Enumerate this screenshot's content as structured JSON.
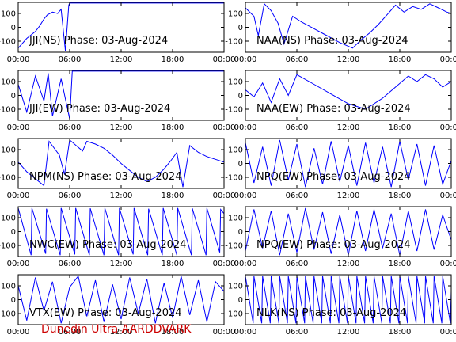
{
  "footer": {
    "text": "Dunedin Ultra AARDDVARK",
    "color": "#cc0000"
  },
  "colors": {
    "trace": "#0000ff",
    "axis": "#000000",
    "background": "#ffffff"
  },
  "chart_data": [
    {
      "type": "line",
      "title": "JJI(NS) Phase: 03-Aug-2024",
      "xlabel": "",
      "ylabel": "",
      "xticks": [
        "00:00",
        "06:00",
        "12:00",
        "18:00",
        "00:00"
      ],
      "yticks": [
        "100",
        "0",
        "-100"
      ],
      "xlim": [
        0,
        24
      ],
      "ylim": [
        -180,
        180
      ],
      "series": [
        {
          "x": [
            0,
            1,
            2,
            2.5,
            3,
            3.4,
            4,
            4.6,
            5,
            5.5,
            5.9,
            6,
            7,
            9,
            12,
            15,
            18,
            21,
            24
          ],
          "y": [
            -150,
            -80,
            -30,
            10,
            60,
            90,
            110,
            100,
            130,
            -170,
            160,
            175,
            175,
            175,
            175,
            175,
            175,
            175,
            175
          ]
        }
      ]
    },
    {
      "type": "line",
      "title": "NAA(NS) Phase: 03-Aug-2024",
      "xlabel": "",
      "ylabel": "",
      "xticks": [
        "00:00",
        "06:00",
        "12:00",
        "18:00",
        "00:00"
      ],
      "yticks": [
        "100",
        "0",
        "-100"
      ],
      "xlim": [
        0,
        24
      ],
      "ylim": [
        -180,
        180
      ],
      "series": [
        {
          "x": [
            0,
            1,
            1.5,
            2.2,
            3,
            3.8,
            4.5,
            5.5,
            6.5,
            8,
            9.5,
            11,
            12.5,
            13.5,
            14.5,
            15.5,
            16.5,
            17.5,
            18.5,
            19.5,
            20.5,
            21.5,
            22.5,
            23.5,
            24
          ],
          "y": [
            140,
            80,
            -60,
            170,
            120,
            30,
            -120,
            80,
            40,
            -10,
            -60,
            -110,
            -150,
            -90,
            -40,
            20,
            90,
            160,
            110,
            150,
            130,
            170,
            140,
            110,
            100
          ]
        }
      ]
    },
    {
      "type": "line",
      "title": "JJI(EW) Phase: 03-Aug-2024",
      "xlabel": "",
      "ylabel": "",
      "xticks": [
        "00:00",
        "06:00",
        "12:00",
        "18:00",
        "00:00"
      ],
      "yticks": [
        "100",
        "0",
        "-100"
      ],
      "xlim": [
        0,
        24
      ],
      "ylim": [
        -180,
        180
      ],
      "series": [
        {
          "x": [
            0,
            1,
            2,
            3,
            3.5,
            4,
            5,
            6,
            6.3,
            7,
            9,
            12,
            15,
            18,
            21,
            24
          ],
          "y": [
            80,
            -120,
            140,
            -40,
            160,
            -150,
            120,
            -170,
            175,
            175,
            175,
            175,
            175,
            175,
            175,
            175
          ]
        }
      ]
    },
    {
      "type": "line",
      "title": "NAA(EW) Phase: 03-Aug-2024",
      "xlabel": "",
      "ylabel": "",
      "xticks": [
        "00:00",
        "06:00",
        "12:00",
        "18:00",
        "00:00"
      ],
      "yticks": [
        "100",
        "0",
        "-100"
      ],
      "xlim": [
        0,
        24
      ],
      "ylim": [
        -180,
        180
      ],
      "series": [
        {
          "x": [
            0,
            1,
            2,
            3,
            4,
            5,
            6,
            8,
            10,
            12,
            14,
            16,
            17.5,
            19,
            20,
            21,
            22,
            23,
            24
          ],
          "y": [
            40,
            -10,
            90,
            -50,
            120,
            0,
            150,
            80,
            10,
            -60,
            -100,
            -20,
            60,
            140,
            100,
            150,
            120,
            60,
            100
          ]
        }
      ]
    },
    {
      "type": "line",
      "title": "NPM(NS) Phase: 03-Aug-2024",
      "xlabel": "",
      "ylabel": "",
      "xticks": [
        "00:00",
        "06:00",
        "12:00",
        "18:00",
        "00:00"
      ],
      "yticks": [
        "100",
        "0",
        "-100"
      ],
      "xlim": [
        0,
        24
      ],
      "ylim": [
        -180,
        180
      ],
      "series": [
        {
          "x": [
            0,
            1,
            2,
            3,
            3.6,
            4.8,
            5.4,
            6,
            7.5,
            8,
            9,
            10,
            11,
            12,
            13,
            14,
            15,
            16,
            17,
            17.8,
            18.5,
            19.2,
            20,
            21,
            22,
            23,
            24
          ],
          "y": [
            10,
            -60,
            -110,
            -160,
            160,
            60,
            -80,
            170,
            90,
            160,
            140,
            110,
            60,
            0,
            -50,
            -100,
            -130,
            -100,
            -40,
            20,
            80,
            -170,
            130,
            80,
            50,
            30,
            10
          ]
        }
      ]
    },
    {
      "type": "line",
      "title": "NPQ(EW) Phase: 03-Aug-2024",
      "xlabel": "",
      "ylabel": "",
      "xticks": [
        "00:00",
        "06:00",
        "12:00",
        "18:00",
        "00:00"
      ],
      "yticks": [
        "100",
        "0",
        "-100"
      ],
      "xlim": [
        0,
        24
      ],
      "ylim": [
        -180,
        180
      ],
      "series": [
        {
          "x": [
            0,
            1,
            2,
            3,
            4,
            5,
            6,
            7,
            8,
            9,
            10,
            11,
            12,
            13,
            14,
            15,
            16,
            17,
            18,
            19,
            20,
            21,
            22,
            23,
            24
          ],
          "y": [
            150,
            -140,
            120,
            -160,
            170,
            -120,
            140,
            -170,
            110,
            -150,
            160,
            -130,
            130,
            -160,
            150,
            -140,
            120,
            -170,
            160,
            -120,
            140,
            -160,
            130,
            -150,
            20
          ]
        }
      ]
    },
    {
      "type": "line",
      "title": "NWC(EW) Phase: 03-Aug-2024",
      "xlabel": "",
      "ylabel": "",
      "xticks": [
        "00:00",
        "06:00",
        "12:00",
        "18:00",
        "00:00"
      ],
      "yticks": [
        "100",
        "0",
        "-100"
      ],
      "xlim": [
        0,
        24
      ],
      "ylim": [
        -180,
        180
      ],
      "series": [
        {
          "x": [
            0,
            1.5,
            1.6,
            3.2,
            3.3,
            4.9,
            5,
            6.6,
            6.7,
            8.3,
            8.4,
            10,
            10.1,
            11.7,
            11.8,
            13.4,
            13.5,
            15.1,
            15.2,
            16.8,
            16.9,
            18.5,
            18.6,
            20.2,
            20.3,
            21.9,
            22,
            23.5,
            23.6,
            24
          ],
          "y": [
            170,
            -170,
            170,
            -160,
            165,
            -170,
            170,
            -165,
            170,
            -170,
            168,
            -170,
            170,
            -170,
            170,
            -165,
            170,
            -170,
            165,
            -170,
            170,
            -170,
            170,
            -170,
            168,
            -170,
            170,
            -150,
            160,
            130
          ]
        }
      ]
    },
    {
      "type": "line",
      "title": "NPQ(EW) Phase: 03-Aug-2024",
      "xlabel": "",
      "ylabel": "",
      "xticks": [
        "00:00",
        "06:00",
        "12:00",
        "18:00",
        "00:00"
      ],
      "yticks": [
        "100",
        "0",
        "-100"
      ],
      "xlim": [
        0,
        24
      ],
      "ylim": [
        -180,
        180
      ],
      "series": [
        {
          "x": [
            0,
            1,
            2,
            3,
            4,
            5,
            6,
            7,
            8,
            9,
            10,
            11,
            12,
            13,
            14,
            15,
            16,
            17,
            18,
            19,
            20,
            21,
            22,
            23,
            24
          ],
          "y": [
            -140,
            160,
            -120,
            150,
            -170,
            130,
            -150,
            170,
            -130,
            140,
            -160,
            120,
            -170,
            150,
            -140,
            160,
            -120,
            130,
            -170,
            150,
            -140,
            160,
            -130,
            120,
            -60
          ]
        }
      ]
    },
    {
      "type": "line",
      "title": "VTX(EW) Phase: 03-Aug-2024",
      "xlabel": "",
      "ylabel": "",
      "xticks": [
        "00:00",
        "06:00",
        "12:00",
        "18:00",
        "00:00"
      ],
      "yticks": [
        "100",
        "0",
        "-100"
      ],
      "xlim": [
        0,
        24
      ],
      "ylim": [
        -180,
        180
      ],
      "series": [
        {
          "x": [
            0,
            1,
            2,
            3,
            4,
            5,
            6,
            7,
            8,
            9,
            10,
            11,
            12,
            13,
            14,
            15,
            16,
            17,
            18,
            19,
            20,
            21,
            22,
            23,
            24
          ],
          "y": [
            100,
            -150,
            160,
            -80,
            130,
            -170,
            90,
            170,
            -120,
            140,
            -160,
            110,
            -140,
            160,
            -100,
            150,
            -170,
            120,
            -130,
            170,
            -110,
            140,
            -160,
            130,
            60
          ]
        }
      ]
    },
    {
      "type": "line",
      "title": "NLK(NS) Phase: 03-Aug-2024",
      "xlabel": "",
      "ylabel": "",
      "xticks": [
        "00:00",
        "06:00",
        "12:00",
        "18:00",
        "00:00"
      ],
      "yticks": [
        "100",
        "0",
        "-100"
      ],
      "xlim": [
        0,
        24
      ],
      "ylim": [
        -180,
        180
      ],
      "series": [
        {
          "x": [
            0,
            0.9,
            1,
            1.9,
            2,
            2.9,
            3,
            3.9,
            4,
            4.9,
            5,
            5.9,
            6,
            6.9,
            7,
            7.9,
            8,
            8.9,
            9,
            9.9,
            10,
            10.9,
            11,
            11.9,
            12,
            12.9,
            13,
            13.9,
            14,
            14.9,
            15,
            15.9,
            16,
            16.9,
            17,
            17.9,
            18,
            18.9,
            19,
            19.9,
            20,
            20.9,
            21,
            21.9,
            22,
            22.9,
            23,
            23.9,
            24
          ],
          "y": [
            170,
            -170,
            170,
            -170,
            170,
            -170,
            170,
            -170,
            170,
            -170,
            170,
            -170,
            170,
            -170,
            170,
            -170,
            170,
            -170,
            170,
            -170,
            170,
            -170,
            170,
            -170,
            170,
            -170,
            170,
            -170,
            170,
            -170,
            170,
            -170,
            170,
            -170,
            170,
            -170,
            170,
            -170,
            170,
            -170,
            170,
            -170,
            170,
            -170,
            170,
            -170,
            170,
            -170,
            60
          ]
        }
      ]
    }
  ]
}
